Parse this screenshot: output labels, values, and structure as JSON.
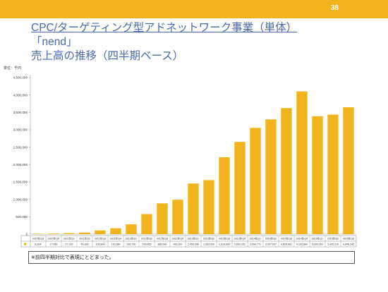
{
  "page": {
    "number": "38",
    "title_lines": [
      "CPC/ターゲティング型アドネットワーク事業（単体）",
      "「nend」",
      "売上高の推移（四半期ベース）"
    ],
    "note": "※前四半期対比で表現にとどまった。"
  },
  "colors": {
    "bar": "#f2b41c",
    "topbar": "#f2b41c",
    "title": "#4a6ab0"
  },
  "chart_data": {
    "type": "bar",
    "title": "",
    "xlabel": "",
    "ylabel": "単位：千円",
    "ylim": [
      0,
      4500000
    ],
    "yticks": [
      "0",
      "500,000",
      "1,000,000",
      "1,500,000",
      "2,000,000",
      "2,500,000",
      "3,000,000",
      "3,500,000",
      "4,000,000",
      "4,500,000"
    ],
    "grid": false,
    "categories": [
      "2010年Q3",
      "2010年Q4",
      "2011年Q1",
      "2011年Q2",
      "2011年Q3",
      "2011年Q4",
      "2012年Q1",
      "2012年Q2",
      "2012年Q3",
      "2012年Q4",
      "2013年Q1",
      "2013年Q2",
      "2013年Q3",
      "2013年Q4",
      "2014年Q1",
      "2014年Q2",
      "2014年Q3",
      "2014年Q4",
      "2015年Q1",
      "2015年Q2",
      "2015年Q3"
    ],
    "values": [
      8304,
      17085,
      27230,
      45339,
      105800,
      170580,
      281750,
      578455,
      886530,
      990391,
      1455345,
      1553000,
      2210650,
      2652251,
      3054771,
      3297837,
      3624081,
      4103864,
      3390563,
      3435215,
      3646342
    ],
    "value_labels": [
      "8,304",
      "17,085",
      "27,230",
      "45,339",
      "105,800",
      "170,580",
      "281,750",
      "578,455",
      "886,530",
      "990,391",
      "1,455,345",
      "1,553,000",
      "2,210,650",
      "2,652,251",
      "3,054,771",
      "3,297,837",
      "3,624,081",
      "4,103,864",
      "3,390,563",
      "3,435,215",
      "3,646,342"
    ],
    "legend": "left"
  }
}
